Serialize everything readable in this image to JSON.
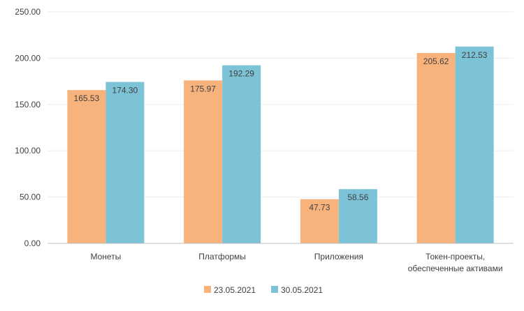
{
  "chart_data": {
    "type": "bar",
    "title": "",
    "xlabel": "",
    "ylabel": "",
    "ylim": [
      0,
      250
    ],
    "yticks": [
      "0.00",
      "50.00",
      "100.00",
      "150.00",
      "200.00",
      "250.00"
    ],
    "grid": true,
    "legend_position": "bottom",
    "categories": [
      [
        "Монеты"
      ],
      [
        "Платформы"
      ],
      [
        "Приложения"
      ],
      [
        "Токен-проекты,",
        "обеспеченные активами"
      ]
    ],
    "series": [
      {
        "name": "23.05.2021",
        "color": "#F8B27C",
        "values": [
          165.53,
          175.97,
          47.73,
          205.62
        ],
        "labels": [
          "165.53",
          "175.97",
          "47.73",
          "205.62"
        ]
      },
      {
        "name": "30.05.2021",
        "color": "#7DC3D7",
        "values": [
          174.3,
          192.29,
          58.56,
          212.53
        ],
        "labels": [
          "174.30",
          "192.29",
          "58.56",
          "212.53"
        ]
      }
    ]
  }
}
